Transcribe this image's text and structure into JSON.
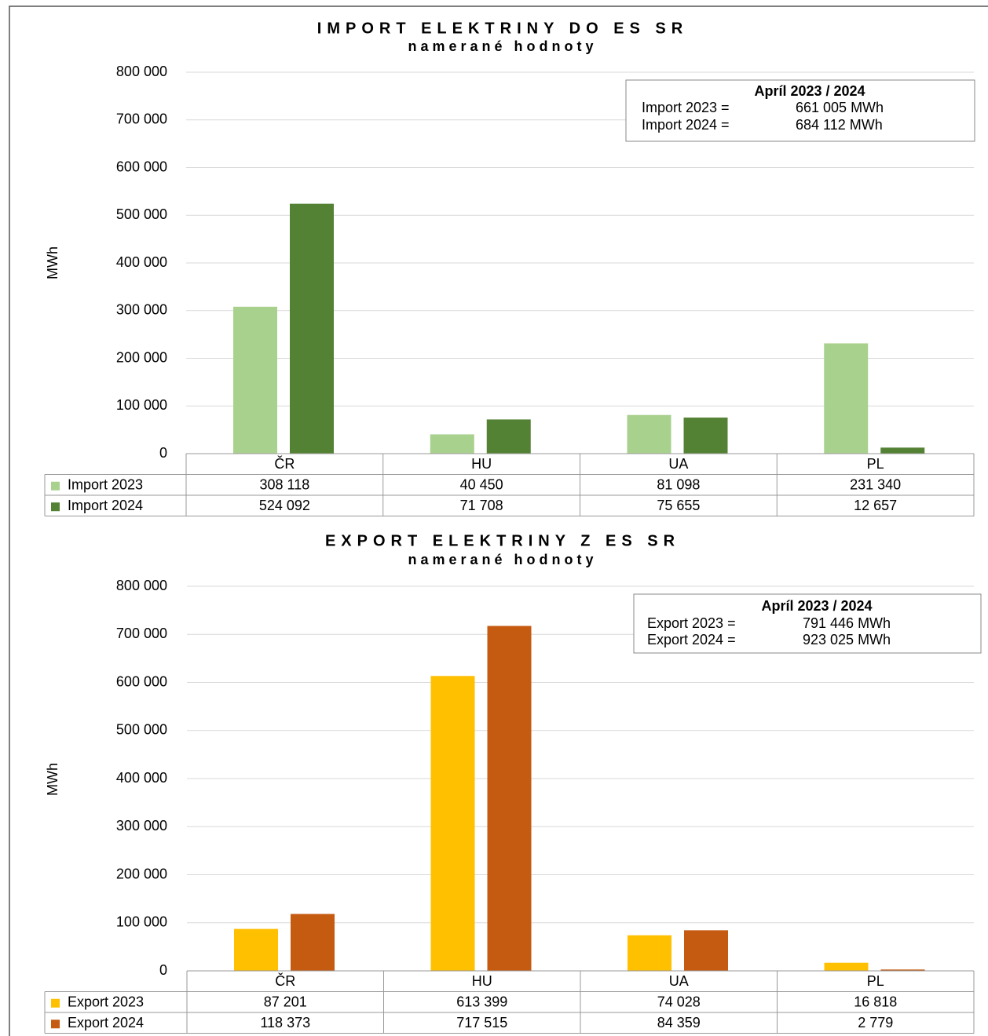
{
  "chart_data": [
    {
      "type": "bar",
      "title": "IMPORT ELEKTRINY DO ES SR",
      "subtitle": "namerané hodnoty",
      "y_label": "MWh",
      "categories": [
        "ČR",
        "HU",
        "UA",
        "PL"
      ],
      "series": [
        {
          "name": "Import 2023",
          "color": "#a9d18e",
          "values": [
            308118,
            40450,
            81098,
            231340
          ],
          "value_labels": [
            "308 118",
            "40 450",
            "81 098",
            "231 340"
          ]
        },
        {
          "name": "Import 2024",
          "color": "#548235",
          "values": [
            524092,
            71708,
            75655,
            12657
          ],
          "value_labels": [
            "524 092",
            "71 708",
            "75 655",
            "12 657"
          ]
        }
      ],
      "ylim": [
        0,
        800000
      ],
      "yticks": [
        0,
        {
          "value": 100000,
          "label": "100 000"
        },
        {
          "value": 200000,
          "label": "200 000"
        },
        {
          "value": 300000,
          "label": "300 000"
        },
        {
          "value": 400000,
          "label": "400 000"
        },
        {
          "value": 500000,
          "label": "500 000"
        },
        {
          "value": 600000,
          "label": "600 000"
        },
        {
          "value": 700000,
          "label": "700 000"
        },
        {
          "value": 800000,
          "label": "800 000"
        }
      ],
      "grid": true,
      "annotation": {
        "title": "Apríl 2023 / 2024",
        "rows": [
          {
            "label": "Import 2023 =",
            "value": "661 005 MWh"
          },
          {
            "label": "Import 2024 =",
            "value": "684 112 MWh"
          }
        ]
      }
    },
    {
      "type": "bar",
      "title": "EXPORT ELEKTRINY Z ES SR",
      "subtitle": "namerané hodnoty",
      "y_label": "MWh",
      "categories": [
        "ČR",
        "HU",
        "UA",
        "PL"
      ],
      "series": [
        {
          "name": "Export 2023",
          "color": "#ffc000",
          "values": [
            87201,
            613399,
            74028,
            16818
          ],
          "value_labels": [
            "87 201",
            "613 399",
            "74 028",
            "16 818"
          ]
        },
        {
          "name": "Export 2024",
          "color": "#c55a11",
          "values": [
            118373,
            717515,
            84359,
            2779
          ],
          "value_labels": [
            "118 373",
            "717 515",
            "84 359",
            "2 779"
          ]
        }
      ],
      "ylim": [
        0,
        800000
      ],
      "yticks": [
        0,
        {
          "value": 100000,
          "label": "100 000"
        },
        {
          "value": 200000,
          "label": "200 000"
        },
        {
          "value": 300000,
          "label": "300 000"
        },
        {
          "value": 400000,
          "label": "400 000"
        },
        {
          "value": 500000,
          "label": "500 000"
        },
        {
          "value": 600000,
          "label": "600 000"
        },
        {
          "value": 700000,
          "label": "700 000"
        },
        {
          "value": 800000,
          "label": "800 000"
        }
      ],
      "grid": true,
      "annotation": {
        "title": "Apríl 2023 / 2024",
        "rows": [
          {
            "label": "Export 2023 =",
            "value": "791 446 MWh"
          },
          {
            "label": "Export 2024 =",
            "value": "923 025 MWh"
          }
        ]
      }
    }
  ]
}
